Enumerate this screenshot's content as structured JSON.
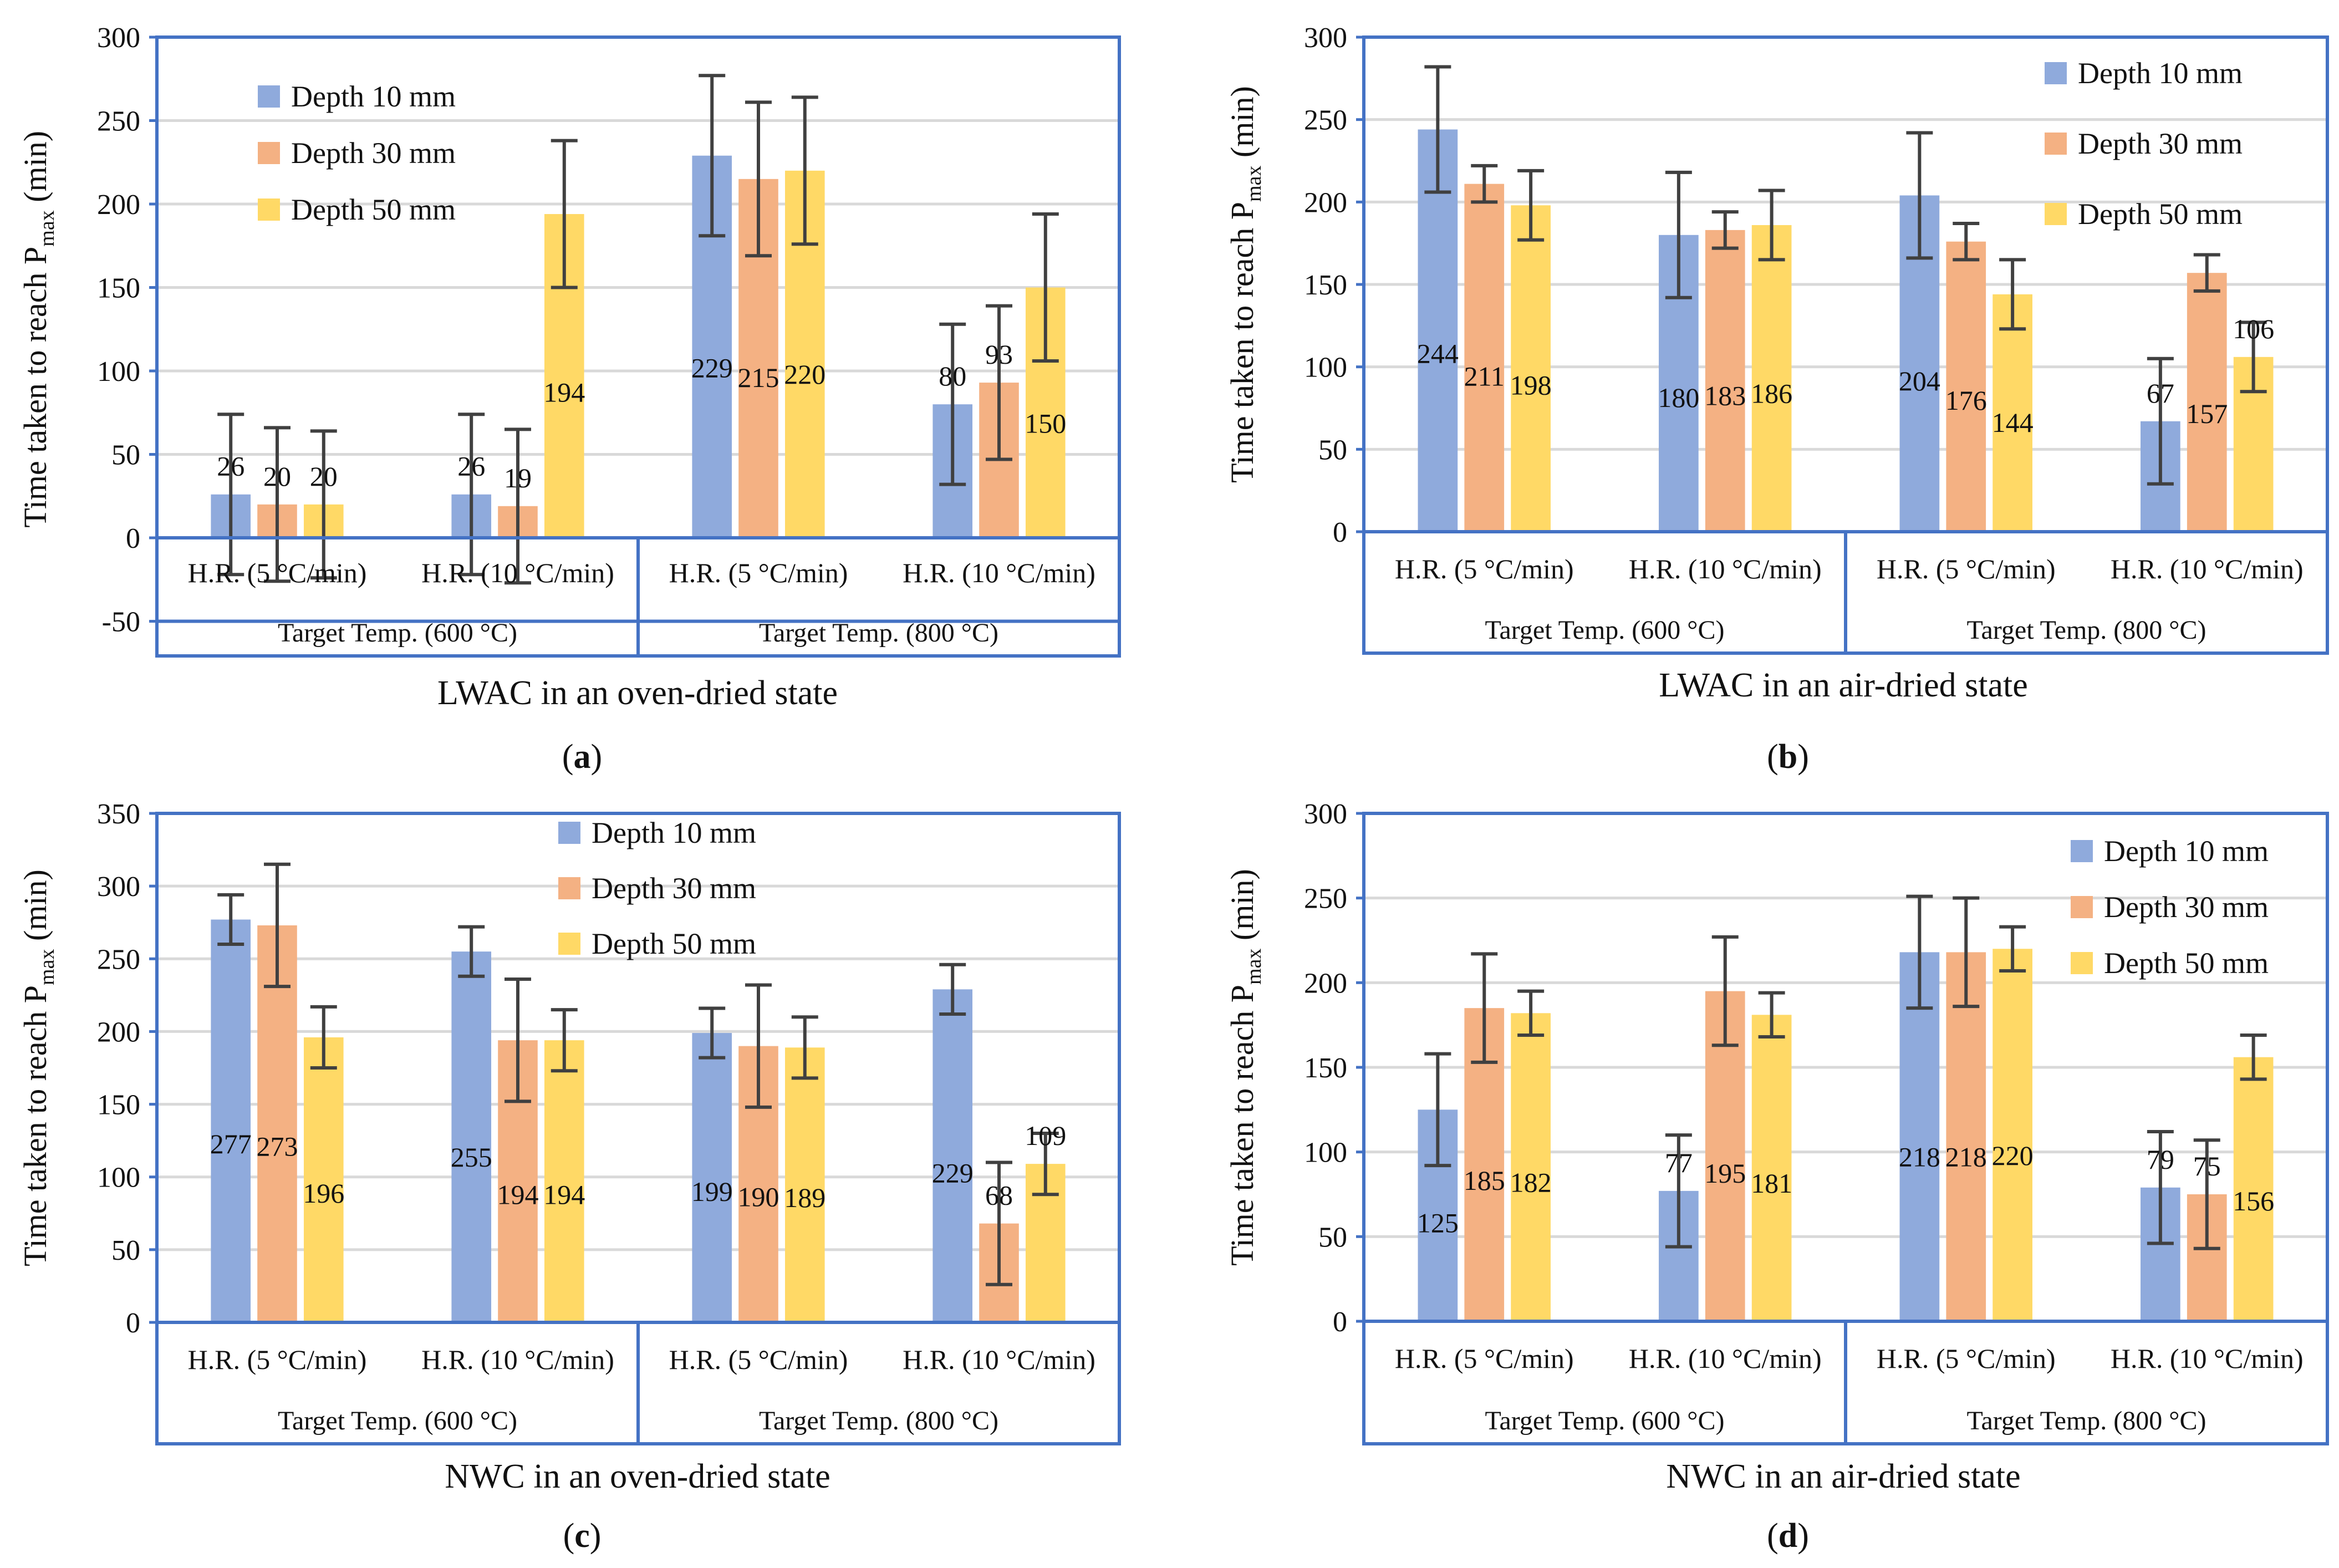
{
  "figure": {
    "ylabel_main": "Time taken to reach P",
    "ylabel_sub": "max",
    "ylabel_unit": " (min)",
    "x_rows": {
      "rates": [
        "H.R. (5 °C/min)",
        "H.R. (10 °C/min)",
        "H.R. (5 °C/min)",
        "H.R. (10 °C/min)"
      ],
      "targets": [
        "Target Temp. (600 °C)",
        "Target Temp. (800 °C)"
      ]
    },
    "series_names": [
      "Depth 10 mm",
      "Depth 30 mm",
      "Depth 50 mm"
    ],
    "colors": {
      "depth10": "#8faadc",
      "depth30": "#f4b183",
      "depth50": "#ffd966",
      "frame": "#4472c4",
      "grid": "#d9d9d9",
      "error": "#404040"
    }
  },
  "chart_data": [
    {
      "panel": "a",
      "type": "bar",
      "title": "LWAC in an oven-dried state",
      "caption": "a",
      "ylim": [
        -50,
        300
      ],
      "yticks": [
        -50,
        0,
        50,
        100,
        150,
        200,
        250,
        300
      ],
      "legend": "top-left",
      "categories": [
        "H.R. (5 °C/min)",
        "H.R. (10 °C/min)",
        "H.R. (5 °C/min)",
        "H.R. (10 °C/min)"
      ],
      "groups": [
        "Target Temp. (600 °C)",
        "Target Temp. (800 °C)"
      ],
      "series": [
        {
          "name": "Depth 10 mm",
          "values": [
            26,
            26,
            229,
            80
          ],
          "errors": [
            48,
            48,
            48,
            48
          ]
        },
        {
          "name": "Depth 30 mm",
          "values": [
            20,
            19,
            215,
            93
          ],
          "errors": [
            46,
            46,
            46,
            46
          ]
        },
        {
          "name": "Depth 50 mm",
          "values": [
            20,
            194,
            220,
            150
          ],
          "errors": [
            44,
            44,
            44,
            44
          ]
        }
      ]
    },
    {
      "panel": "b",
      "type": "bar",
      "title": "LWAC in an air-dried state",
      "caption": "b",
      "ylim": [
        0,
        300
      ],
      "yticks": [
        0,
        50,
        100,
        150,
        200,
        250,
        300
      ],
      "legend": "top-right",
      "categories": [
        "H.R. (5 °C/min)",
        "H.R. (10 °C/min)",
        "H.R. (5 °C/min)",
        "H.R. (10 °C/min)"
      ],
      "groups": [
        "Target Temp. (600 °C)",
        "Target Temp. (800 °C)"
      ],
      "series": [
        {
          "name": "Depth 10 mm",
          "values": [
            244,
            180,
            204,
            67
          ],
          "errors": [
            38,
            38,
            38,
            38
          ]
        },
        {
          "name": "Depth 30 mm",
          "values": [
            211,
            183,
            176,
            157
          ],
          "errors": [
            11,
            11,
            11,
            11
          ]
        },
        {
          "name": "Depth 50 mm",
          "values": [
            198,
            186,
            144,
            106
          ],
          "errors": [
            21,
            21,
            21,
            21
          ]
        }
      ]
    },
    {
      "panel": "c",
      "type": "bar",
      "title": "NWC in an oven-dried state",
      "caption": "c",
      "ylim": [
        0,
        350
      ],
      "yticks": [
        0,
        50,
        100,
        150,
        200,
        250,
        300,
        350
      ],
      "legend": "top-center",
      "categories": [
        "H.R. (5 °C/min)",
        "H.R. (10 °C/min)",
        "H.R. (5 °C/min)",
        "H.R. (10 °C/min)"
      ],
      "groups": [
        "Target Temp. (600 °C)",
        "Target Temp. (800 °C)"
      ],
      "series": [
        {
          "name": "Depth 10 mm",
          "values": [
            277,
            255,
            199,
            229
          ],
          "errors": [
            17,
            17,
            17,
            17
          ]
        },
        {
          "name": "Depth 30 mm",
          "values": [
            273,
            194,
            190,
            68
          ],
          "errors": [
            42,
            42,
            42,
            42
          ]
        },
        {
          "name": "Depth 50 mm",
          "values": [
            196,
            194,
            189,
            109
          ],
          "errors": [
            21,
            21,
            21,
            21
          ]
        }
      ]
    },
    {
      "panel": "d",
      "type": "bar",
      "title": "NWC in an air-dried state",
      "caption": "d",
      "ylim": [
        0,
        300
      ],
      "yticks": [
        0,
        50,
        100,
        150,
        200,
        250,
        300
      ],
      "legend": "top-right",
      "categories": [
        "H.R. (5 °C/min)",
        "H.R. (10 °C/min)",
        "H.R. (5 °C/min)",
        "H.R. (10 °C/min)"
      ],
      "groups": [
        "Target Temp. (600 °C)",
        "Target Temp. (800 °C)"
      ],
      "series": [
        {
          "name": "Depth 10 mm",
          "values": [
            125,
            77,
            218,
            79
          ],
          "errors": [
            33,
            33,
            33,
            33
          ]
        },
        {
          "name": "Depth 30 mm",
          "values": [
            185,
            195,
            218,
            75
          ],
          "errors": [
            32,
            32,
            32,
            32
          ]
        },
        {
          "name": "Depth 50 mm",
          "values": [
            182,
            181,
            220,
            156
          ],
          "errors": [
            13,
            13,
            13,
            13
          ]
        }
      ]
    }
  ]
}
